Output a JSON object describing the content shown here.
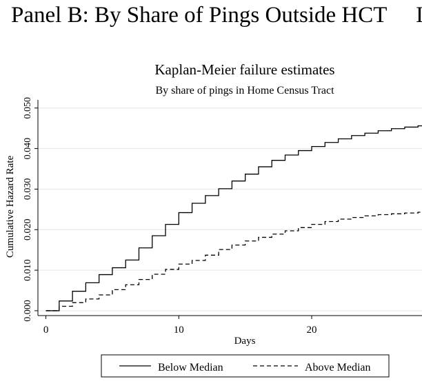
{
  "panel_title": "Panel B: By Share of Pings Outside HCT",
  "panel_title_cutoff": "I",
  "chart_data": {
    "type": "line",
    "title": "Kaplan-Meier failure estimates",
    "subtitle": "By share of pings in Home Census Tract",
    "xlabel": "Days",
    "ylabel": "Cumulative Hazard Rate",
    "xlim": [
      -0.6,
      28.3
    ],
    "ylim": [
      -0.0012,
      0.052
    ],
    "xticks": [
      0,
      10,
      20
    ],
    "xtick_labels": [
      "0",
      "10",
      "20"
    ],
    "yticks": [
      0,
      0.01,
      0.02,
      0.03,
      0.04,
      0.05
    ],
    "ytick_labels": [
      "0.000",
      "0.010",
      "0.020",
      "0.030",
      "0.040",
      "0.050"
    ],
    "grid": true,
    "legend_position": "bottom",
    "step": true,
    "series": [
      {
        "name": "Below Median",
        "dash": "solid",
        "x": [
          0,
          1,
          2,
          3,
          4,
          5,
          6,
          7,
          8,
          9,
          10,
          11,
          12,
          13,
          14,
          15,
          16,
          17,
          18,
          19,
          20,
          21,
          22,
          23,
          24,
          25,
          26,
          27,
          28
        ],
        "y": [
          0.0,
          0.0024,
          0.0048,
          0.0069,
          0.0089,
          0.0106,
          0.0125,
          0.0155,
          0.0185,
          0.0213,
          0.0242,
          0.0265,
          0.0284,
          0.0301,
          0.032,
          0.0337,
          0.0355,
          0.0371,
          0.0384,
          0.0395,
          0.0405,
          0.0415,
          0.0424,
          0.0432,
          0.0438,
          0.0444,
          0.0449,
          0.0453,
          0.0456
        ]
      },
      {
        "name": "Above Median",
        "dash": "dashed",
        "x": [
          0,
          1,
          2,
          3,
          4,
          5,
          6,
          7,
          8,
          9,
          10,
          11,
          12,
          13,
          14,
          15,
          16,
          17,
          18,
          19,
          20,
          21,
          22,
          23,
          24,
          25,
          26,
          27,
          28
        ],
        "y": [
          0.0,
          0.0011,
          0.002,
          0.0029,
          0.0039,
          0.0052,
          0.0064,
          0.0077,
          0.009,
          0.0102,
          0.0115,
          0.0124,
          0.0137,
          0.0151,
          0.0162,
          0.0172,
          0.0181,
          0.0189,
          0.0197,
          0.0205,
          0.0213,
          0.022,
          0.0226,
          0.023,
          0.0234,
          0.0237,
          0.0239,
          0.0241,
          0.0243
        ]
      }
    ]
  }
}
